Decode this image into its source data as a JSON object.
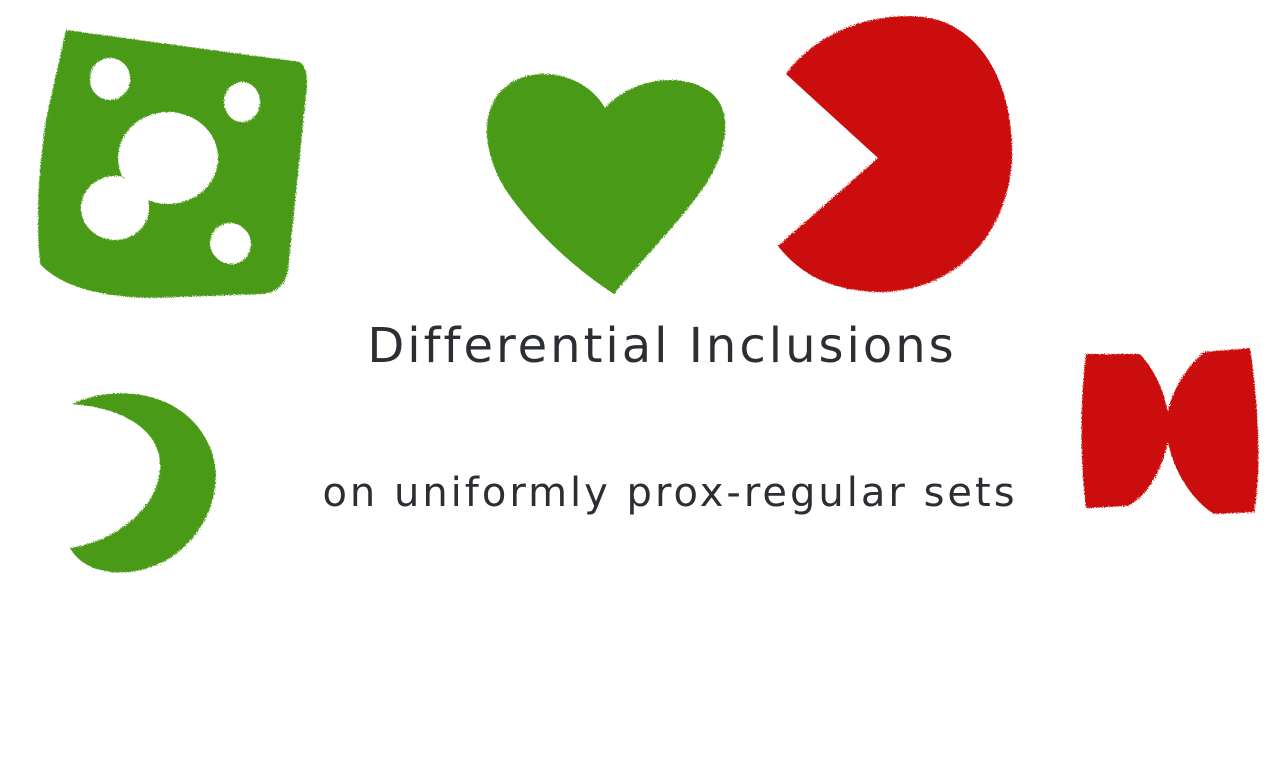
{
  "title": {
    "main": "Differential Inclusions",
    "sub": "on uniformly prox-regular sets"
  },
  "colors": {
    "green": "#4a9a14",
    "red": "#cc0a0a",
    "text": "#2b2e33",
    "background": "#ffffff"
  },
  "shapes": [
    {
      "name": "square-with-holes",
      "color": "green"
    },
    {
      "name": "heart",
      "color": "green"
    },
    {
      "name": "pacman",
      "color": "red"
    },
    {
      "name": "crescent",
      "color": "green"
    },
    {
      "name": "bowtie",
      "color": "red"
    }
  ]
}
